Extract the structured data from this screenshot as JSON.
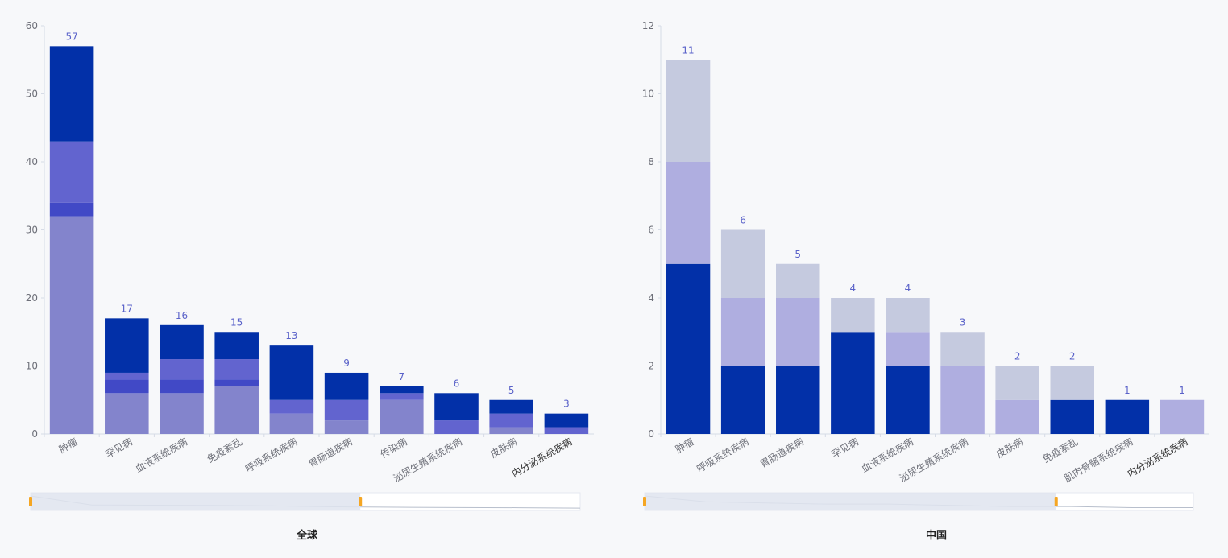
{
  "colors": {
    "background": "#f7f8fa",
    "axis_line": "#d6dbe6",
    "axis_text": "#6e7079",
    "value_label": "#5a62c9",
    "slider_fill": "#dfe4ee",
    "slider_handle": "#f5a623"
  },
  "chart_data": [
    {
      "type": "bar",
      "stacked": true,
      "title": "全球",
      "categories": [
        "肿瘤",
        "罕见病",
        "血液系统疾病",
        "免疫紊乱",
        "呼吸系统疾病",
        "胃肠道疾病",
        "传染病",
        "泌尿生殖系统疾病",
        "皮肤病",
        "内分泌系统疾病"
      ],
      "series": [
        {
          "color": "#8384cc",
          "values": [
            32,
            6,
            6,
            7,
            3,
            2,
            5,
            0,
            1,
            0
          ]
        },
        {
          "color": "#4149c6",
          "values": [
            2,
            2,
            2,
            1,
            0,
            0,
            0,
            0,
            0,
            0
          ]
        },
        {
          "color": "#6264cf",
          "values": [
            9,
            1,
            3,
            3,
            2,
            3,
            1,
            2,
            2,
            1
          ]
        },
        {
          "color": "#0230a8",
          "values": [
            14,
            8,
            5,
            4,
            8,
            4,
            1,
            4,
            2,
            2
          ]
        }
      ],
      "totals": [
        57,
        17,
        16,
        15,
        13,
        9,
        7,
        6,
        5,
        3
      ],
      "ylim": [
        0,
        60
      ],
      "yticks": [
        0,
        10,
        20,
        30,
        40,
        50,
        60
      ],
      "legend": "none",
      "grid": false
    },
    {
      "type": "bar",
      "stacked": true,
      "title": "中国",
      "categories": [
        "肿瘤",
        "呼吸系统疾病",
        "胃肠道疾病",
        "罕见病",
        "血液系统疾病",
        "泌尿生殖系统疾病",
        "皮肤病",
        "免疫紊乱",
        "肌肉骨骼系统疾病",
        "内分泌系统疾病"
      ],
      "series": [
        {
          "color": "#0230a8",
          "values": [
            5,
            2,
            2,
            3,
            2,
            0,
            0,
            1,
            1,
            0
          ]
        },
        {
          "color": "#afaee0",
          "values": [
            3,
            2,
            2,
            0,
            1,
            2,
            1,
            0,
            0,
            1
          ]
        },
        {
          "color": "#c5cadf",
          "values": [
            3,
            2,
            1,
            1,
            1,
            1,
            1,
            1,
            0,
            0
          ]
        }
      ],
      "totals": [
        11,
        6,
        5,
        4,
        4,
        3,
        2,
        2,
        1,
        1
      ],
      "ylim": [
        0,
        12
      ],
      "yticks": [
        0,
        2,
        4,
        6,
        8,
        10,
        12
      ],
      "legend": "none",
      "grid": false
    }
  ],
  "zoom": [
    {
      "start": 0,
      "end": 0.6
    },
    {
      "start": 0,
      "end": 0.75
    }
  ]
}
